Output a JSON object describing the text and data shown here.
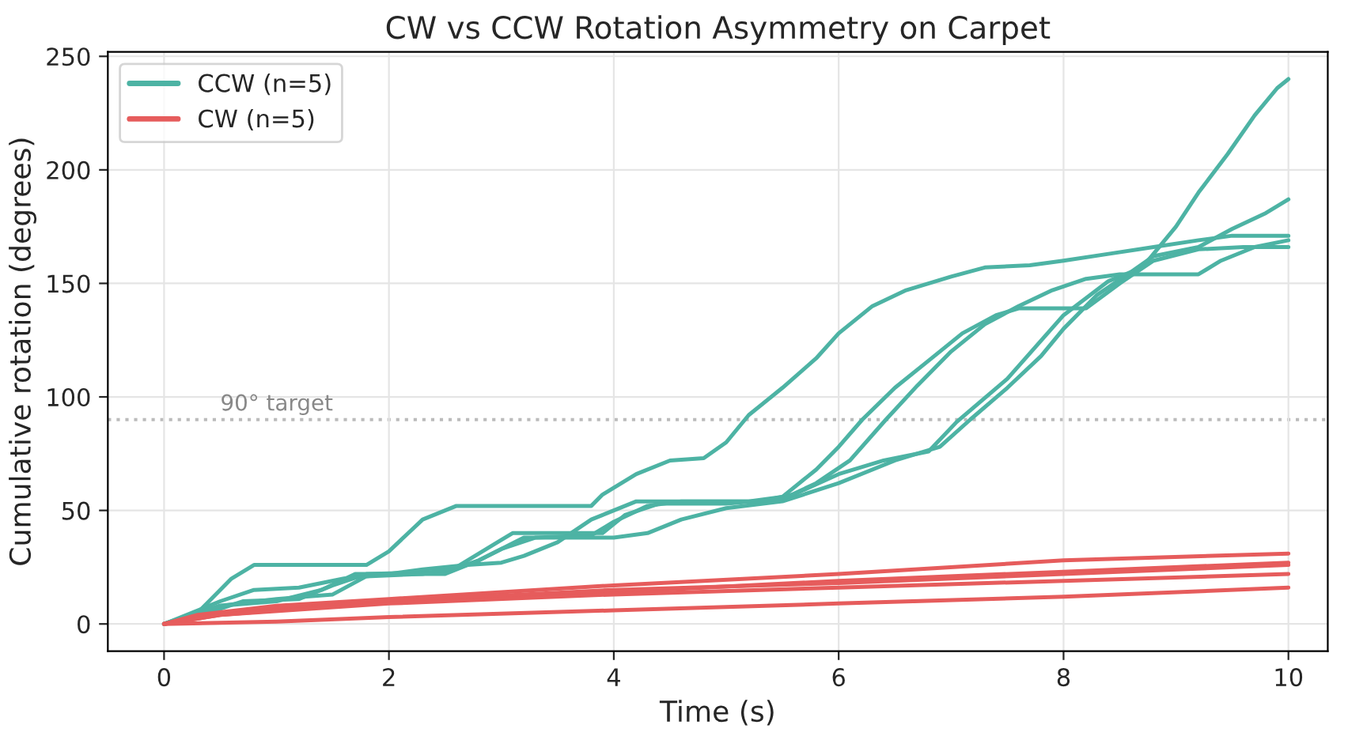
{
  "chart_data": {
    "type": "line",
    "title": "CW vs CCW Rotation Asymmetry on Carpet",
    "xlabel": "Time (s)",
    "ylabel": "Cumulative rotation (degrees)",
    "xlim": [
      -0.5,
      10.35
    ],
    "ylim": [
      -12,
      252
    ],
    "xticks": [
      0,
      2,
      4,
      6,
      8,
      10
    ],
    "yticks": [
      0,
      50,
      100,
      150,
      200,
      250
    ],
    "grid": true,
    "legend": "top left",
    "line_style": "solid",
    "ref_lines": [
      {
        "axis": "y",
        "value": 90,
        "label": "90° target",
        "color": "#bbbbbb",
        "line_style": "dotted"
      }
    ],
    "series": [
      {
        "name": "CCW (n=5)",
        "color": "#4db3a4",
        "x": [
          0,
          0.3,
          0.6,
          0.8,
          1.8,
          2.0,
          2.3,
          2.6,
          3.8,
          3.9,
          4.2,
          4.5,
          4.8,
          5.0,
          5.2,
          5.5,
          5.8,
          6.0,
          6.3,
          6.6,
          7.0,
          7.3,
          7.7,
          8.0,
          8.4,
          8.8,
          9.2,
          9.5,
          10
        ],
        "values": [
          0,
          5,
          20,
          26,
          26,
          32,
          46,
          52,
          52,
          57,
          66,
          72,
          73,
          80,
          92,
          104,
          117,
          128,
          140,
          147,
          153,
          157,
          158,
          160,
          163,
          166,
          169,
          171,
          171
        ]
      },
      {
        "color": "#4db3a4",
        "x": [
          0,
          0.4,
          0.7,
          1.2,
          1.5,
          1.8,
          2.5,
          2.8,
          3.0,
          3.3,
          3.8,
          4.0,
          4.3,
          4.6,
          5.0,
          5.3,
          5.6,
          6.0,
          6.4,
          6.8,
          7.05,
          7.5,
          8.0,
          8.4,
          8.7,
          9.0,
          9.2,
          9.46,
          9.7,
          9.9,
          10
        ],
        "values": [
          0,
          5,
          10,
          11,
          17,
          22,
          23,
          28,
          33,
          38,
          39,
          45,
          52,
          54,
          54,
          54,
          57,
          66,
          72,
          76,
          89,
          108,
          136,
          151,
          157,
          175,
          190,
          207,
          224,
          236,
          240
        ]
      },
      {
        "color": "#4db3a4",
        "x": [
          0,
          0.5,
          1.0,
          1.4,
          1.7,
          2.5,
          2.8,
          3.2,
          4.0,
          4.3,
          4.6,
          5.0,
          5.5,
          6.0,
          6.5,
          6.9,
          7.17,
          7.5,
          7.8,
          8.0,
          8.3,
          8.6,
          8.8,
          9.2,
          9.5,
          9.8,
          10
        ],
        "values": [
          0,
          8,
          10,
          15,
          22,
          22,
          28,
          38,
          38,
          40,
          46,
          51,
          54,
          62,
          72,
          78,
          90,
          104,
          118,
          130,
          145,
          155,
          162,
          166,
          174,
          181,
          187
        ]
      },
      {
        "color": "#4db3a4",
        "x": [
          0,
          0.5,
          0.8,
          1.2,
          1.6,
          2.0,
          2.3,
          2.7,
          3.0,
          3.2,
          3.5,
          3.8,
          4.2,
          4.7,
          5.2,
          5.5,
          5.8,
          6.0,
          6.21,
          6.5,
          6.8,
          7.1,
          7.4,
          7.6,
          8.2,
          8.5,
          8.8,
          9.2,
          9.6,
          10
        ],
        "values": [
          0,
          10,
          15,
          16,
          20,
          22,
          24,
          26,
          27,
          30,
          36,
          46,
          54,
          54,
          54,
          56,
          68,
          78,
          90,
          104,
          116,
          128,
          136,
          139,
          139,
          150,
          160,
          165,
          166,
          166
        ]
      },
      {
        "color": "#4db3a4",
        "x": [
          0,
          0.5,
          1.0,
          1.5,
          1.8,
          2.3,
          2.6,
          3.0,
          3.1,
          3.6,
          3.9,
          4.1,
          4.4,
          5.0,
          5.5,
          5.8,
          6.1,
          6.42,
          6.7,
          7.0,
          7.3,
          7.6,
          7.9,
          8.2,
          8.5,
          9.2,
          9.4,
          9.7,
          10
        ],
        "values": [
          0,
          8,
          11,
          13,
          21,
          22,
          25,
          37,
          40,
          40,
          40,
          48,
          53,
          53,
          55,
          62,
          72,
          90,
          105,
          120,
          132,
          140,
          147,
          152,
          154,
          154,
          160,
          166,
          169
        ]
      },
      {
        "name": "CW (n=5)",
        "color": "#e65c5c",
        "x": [
          0,
          0.3,
          1,
          2,
          4,
          6,
          8,
          10
        ],
        "values": [
          0,
          4,
          8,
          11,
          17,
          22,
          28,
          31
        ]
      },
      {
        "color": "#e65c5c",
        "x": [
          0,
          0.5,
          2,
          4,
          6,
          8,
          10
        ],
        "values": [
          0,
          5,
          10,
          14,
          19,
          23,
          27
        ]
      },
      {
        "color": "#e65c5c",
        "x": [
          0,
          0.5,
          2,
          4,
          6,
          8,
          10
        ],
        "values": [
          0,
          4,
          10,
          15,
          18,
          22,
          26
        ]
      },
      {
        "color": "#e65c5c",
        "x": [
          0,
          0.5,
          2,
          4,
          6,
          8,
          10
        ],
        "values": [
          0,
          4,
          9,
          13,
          16,
          19,
          22
        ]
      },
      {
        "color": "#e65c5c",
        "x": [
          0,
          1,
          2,
          4,
          6,
          8,
          10
        ],
        "values": [
          0,
          1,
          3,
          6,
          9,
          12,
          16
        ]
      }
    ]
  }
}
